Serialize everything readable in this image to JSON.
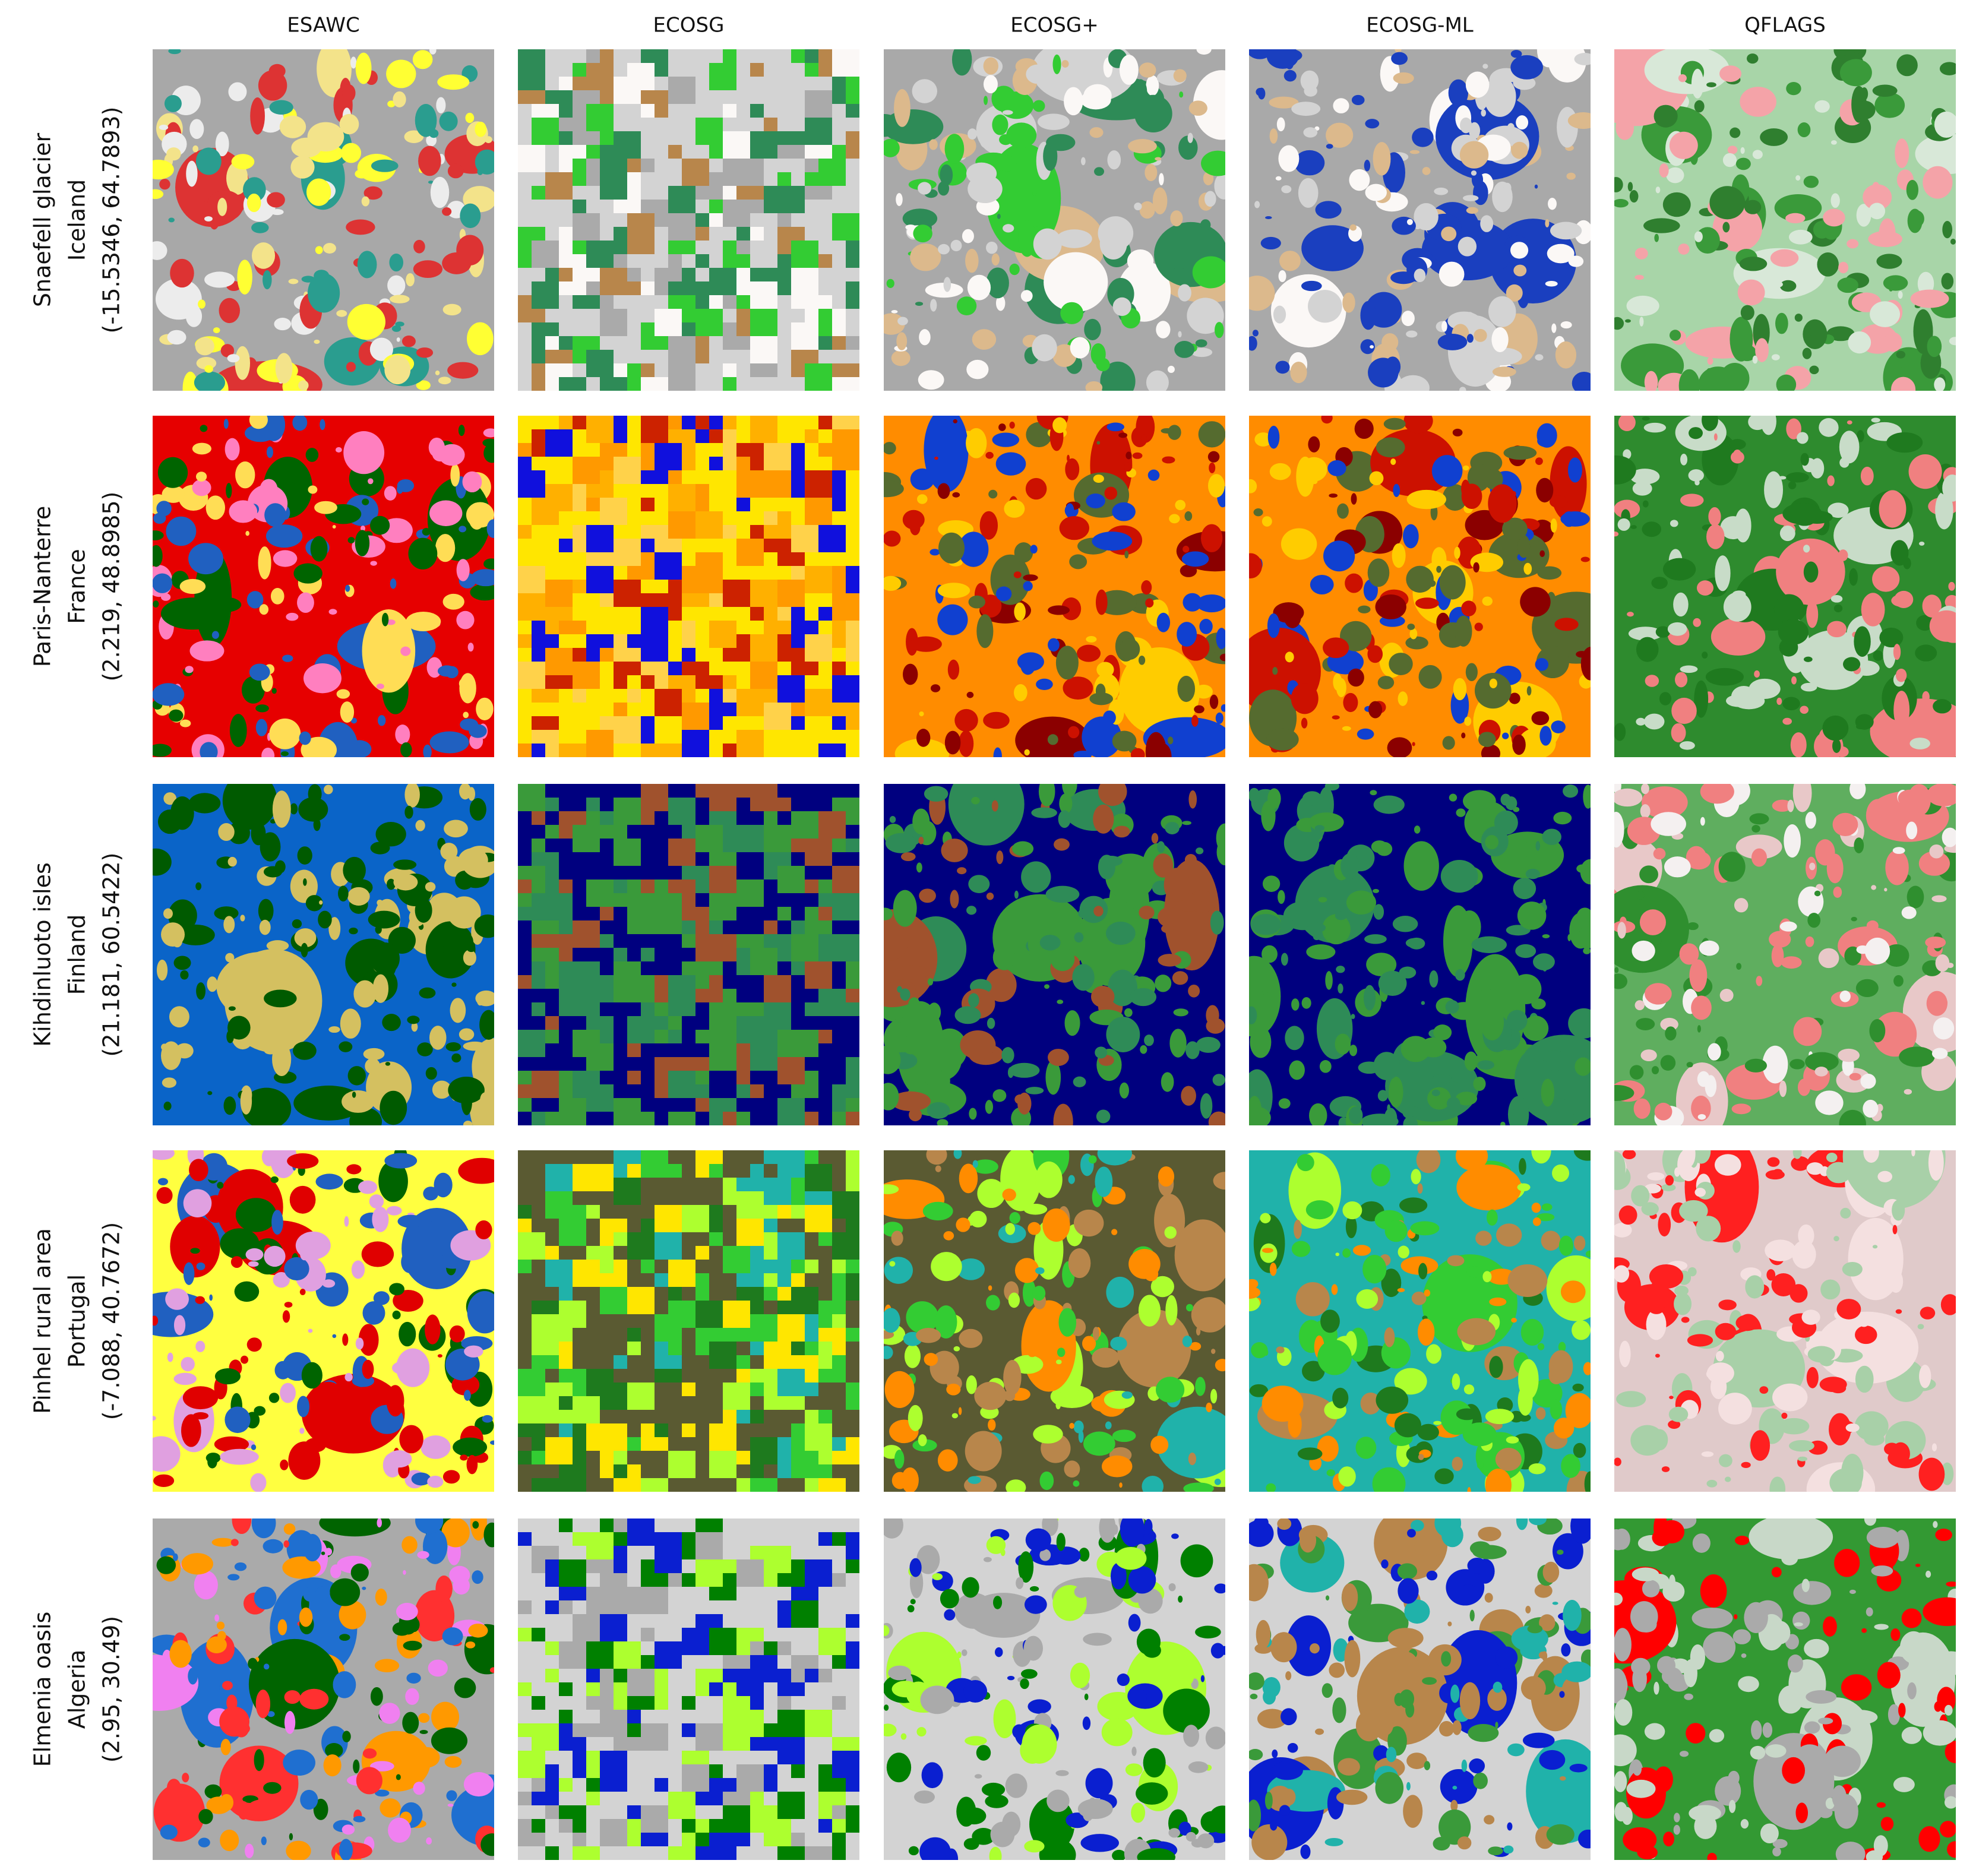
{
  "columns": [
    "ESAWC",
    "ECOSG",
    "ECOSG+",
    "ECOSG-ML",
    "QFLAGS"
  ],
  "rows": [
    {
      "lines": [
        "Snaefell glacier",
        "Iceland",
        "(-15.5346, 64.7893)"
      ]
    },
    {
      "lines": [
        "Paris-Nanterre",
        "France",
        "(2.219, 48.8985)"
      ]
    },
    {
      "lines": [
        "Kihdinluoto isles",
        "Finland",
        "(21.181, 60.5422)"
      ]
    },
    {
      "lines": [
        "Pinhel rural area",
        "Portugal",
        "(-7.088, 40.7672)"
      ]
    },
    {
      "lines": [
        "Elmenia oasis",
        "Algeria",
        "(2.95, 30.49)"
      ]
    }
  ]
}
